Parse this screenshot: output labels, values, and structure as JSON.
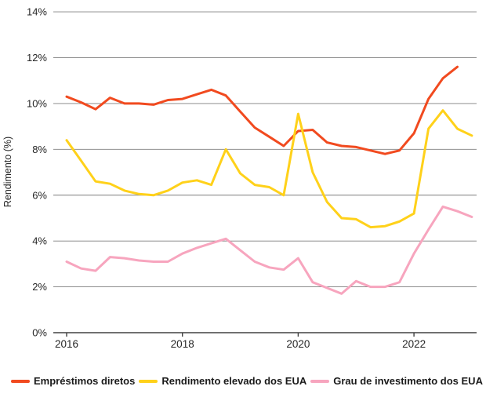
{
  "chart_data": {
    "type": "line",
    "title": "",
    "xlabel": "",
    "ylabel": "Rendimento (%)",
    "ylim": [
      0,
      14
    ],
    "xlim": [
      2015.75,
      2023.1
    ],
    "grid": "horizontal",
    "legend_position": "bottom",
    "frequency": "quarterly",
    "x_start": 2016,
    "x_step_years": 0.25,
    "yticks": [
      "0%",
      "2%",
      "4%",
      "6%",
      "8%",
      "10%",
      "12%",
      "14%"
    ],
    "ytick_values": [
      0,
      2,
      4,
      6,
      8,
      10,
      12,
      14
    ],
    "xticks": [
      "2016",
      "2018",
      "2020",
      "2022"
    ],
    "xtick_values": [
      2016,
      2018,
      2020,
      2022
    ],
    "series": [
      {
        "name": "Empréstimos diretos",
        "color": "#F14A1F",
        "values": [
          10.3,
          10.05,
          9.75,
          10.25,
          10.0,
          10.0,
          9.95,
          10.15,
          10.2,
          10.4,
          10.6,
          10.35,
          9.65,
          8.95,
          8.55,
          8.15,
          8.8,
          8.85,
          8.3,
          8.15,
          8.1,
          7.95,
          7.8,
          7.95,
          8.7,
          10.2,
          11.1,
          11.6
        ]
      },
      {
        "name": "Rendimento elevado dos EUA",
        "color": "#FFD11A",
        "values": [
          8.4,
          7.5,
          6.6,
          6.5,
          6.2,
          6.05,
          6.0,
          6.2,
          6.55,
          6.65,
          6.45,
          8.0,
          6.95,
          6.45,
          6.35,
          6.0,
          9.55,
          7.0,
          5.7,
          5.0,
          4.95,
          4.6,
          4.65,
          4.85,
          5.2,
          8.9,
          9.7,
          8.9,
          8.6
        ]
      },
      {
        "name": "Grau de investimento dos EUA",
        "color": "#F7A5BE",
        "values": [
          3.1,
          2.8,
          2.7,
          3.3,
          3.25,
          3.15,
          3.1,
          3.1,
          3.45,
          3.7,
          3.9,
          4.1,
          3.6,
          3.1,
          2.85,
          2.75,
          3.25,
          2.2,
          1.95,
          1.7,
          2.25,
          2.0,
          2.0,
          2.2,
          3.45,
          4.5,
          5.5,
          5.3,
          5.05
        ]
      }
    ],
    "style": {
      "gridline_color": "#7F7F7F",
      "axis_color": "#404040",
      "tick_label_color": "#262626",
      "line_width": 3
    }
  }
}
